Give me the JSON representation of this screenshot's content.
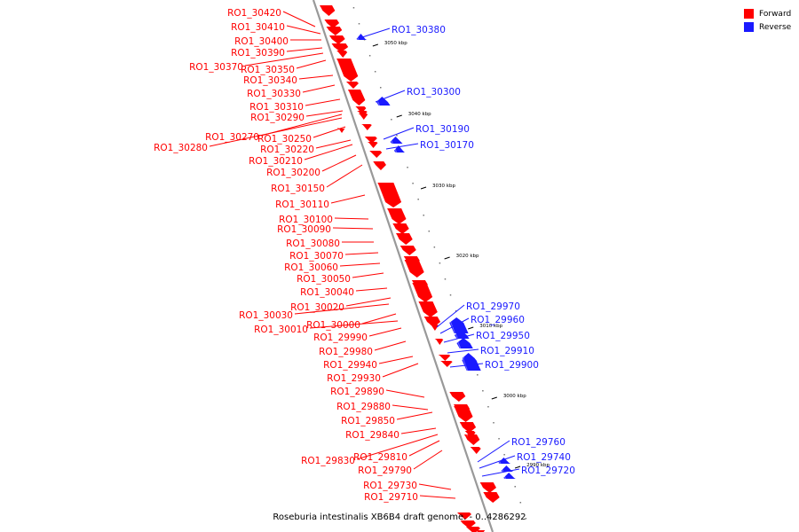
{
  "legend": {
    "forward_label": "Forward",
    "reverse_label": "Reverse",
    "forward_color": "#ff0000",
    "reverse_color": "#1a1aff"
  },
  "caption": "Roseburia intestinalis XB6B4 draft genome. - 0..4286292",
  "axis_ticks": [
    "3050 kbp",
    "3040 kbp",
    "3030 kbp",
    "3020 kbp",
    "3010 kbp",
    "3000 kbp",
    "2990 kbp"
  ],
  "genes": [
    {
      "label": "RO1_30420",
      "strand": "forward"
    },
    {
      "label": "RO1_30410",
      "strand": "forward"
    },
    {
      "label": "RO1_30400",
      "strand": "forward"
    },
    {
      "label": "RO1_30390",
      "strand": "forward"
    },
    {
      "label": "RO1_30370",
      "strand": "forward"
    },
    {
      "label": "RO1_30350",
      "strand": "forward"
    },
    {
      "label": "RO1_30340",
      "strand": "forward"
    },
    {
      "label": "RO1_30330",
      "strand": "forward"
    },
    {
      "label": "RO1_30310",
      "strand": "forward"
    },
    {
      "label": "RO1_30290",
      "strand": "forward"
    },
    {
      "label": "RO1_30270",
      "strand": "forward"
    },
    {
      "label": "RO1_30250",
      "strand": "forward"
    },
    {
      "label": "RO1_30280",
      "strand": "forward"
    },
    {
      "label": "RO1_30220",
      "strand": "forward"
    },
    {
      "label": "RO1_30210",
      "strand": "forward"
    },
    {
      "label": "RO1_30200",
      "strand": "forward"
    },
    {
      "label": "RO1_30150",
      "strand": "forward"
    },
    {
      "label": "RO1_30110",
      "strand": "forward"
    },
    {
      "label": "RO1_30100",
      "strand": "forward"
    },
    {
      "label": "RO1_30090",
      "strand": "forward"
    },
    {
      "label": "RO1_30080",
      "strand": "forward"
    },
    {
      "label": "RO1_30070",
      "strand": "forward"
    },
    {
      "label": "RO1_30060",
      "strand": "forward"
    },
    {
      "label": "RO1_30050",
      "strand": "forward"
    },
    {
      "label": "RO1_30040",
      "strand": "forward"
    },
    {
      "label": "RO1_30020",
      "strand": "forward"
    },
    {
      "label": "RO1_30030",
      "strand": "forward"
    },
    {
      "label": "RO1_30000",
      "strand": "forward"
    },
    {
      "label": "RO1_30010",
      "strand": "forward"
    },
    {
      "label": "RO1_29990",
      "strand": "forward"
    },
    {
      "label": "RO1_29980",
      "strand": "forward"
    },
    {
      "label": "RO1_29940",
      "strand": "forward"
    },
    {
      "label": "RO1_29930",
      "strand": "forward"
    },
    {
      "label": "RO1_29890",
      "strand": "forward"
    },
    {
      "label": "RO1_29880",
      "strand": "forward"
    },
    {
      "label": "RO1_29850",
      "strand": "forward"
    },
    {
      "label": "RO1_29840",
      "strand": "forward"
    },
    {
      "label": "RO1_29810",
      "strand": "forward"
    },
    {
      "label": "RO1_29830",
      "strand": "forward"
    },
    {
      "label": "RO1_29790",
      "strand": "forward"
    },
    {
      "label": "RO1_29730",
      "strand": "forward"
    },
    {
      "label": "RO1_29710",
      "strand": "forward"
    },
    {
      "label": "RO1_30380",
      "strand": "reverse"
    },
    {
      "label": "RO1_30300",
      "strand": "reverse"
    },
    {
      "label": "RO1_30190",
      "strand": "reverse"
    },
    {
      "label": "RO1_30170",
      "strand": "reverse"
    },
    {
      "label": "RO1_29970",
      "strand": "reverse"
    },
    {
      "label": "RO1_29960",
      "strand": "reverse"
    },
    {
      "label": "RO1_29950",
      "strand": "reverse"
    },
    {
      "label": "RO1_29910",
      "strand": "reverse"
    },
    {
      "label": "RO1_29900",
      "strand": "reverse"
    },
    {
      "label": "RO1_29760",
      "strand": "reverse"
    },
    {
      "label": "RO1_29740",
      "strand": "reverse"
    },
    {
      "label": "RO1_29720",
      "strand": "reverse"
    }
  ]
}
